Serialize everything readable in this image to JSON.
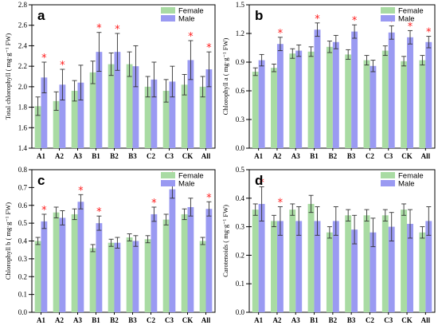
{
  "colors": {
    "female": "#a9dba3",
    "male": "#9a9af2",
    "star": "#ff1a1a"
  },
  "chart_data": [
    {
      "id": "a",
      "type": "bar",
      "panel_letter": "a",
      "ylabel": "Total chlorophyll ( mg·g⁻¹ FW)",
      "ylim": [
        1.4,
        2.8
      ],
      "yticks": [
        "1.4",
        "1.6",
        "1.8",
        "2.0",
        "2.2",
        "2.4",
        "2.6",
        "2.8"
      ],
      "categories": [
        "A1",
        "A2",
        "A3",
        "B1",
        "B2",
        "B3",
        "C2",
        "C3",
        "CK",
        "All"
      ],
      "legend": {
        "position": "top-right"
      },
      "series": [
        {
          "name": "Female",
          "values": [
            1.81,
            1.86,
            1.96,
            2.14,
            2.22,
            2.22,
            2.0,
            1.96,
            2.02,
            2.0
          ],
          "errors": [
            0.09,
            0.09,
            0.1,
            0.11,
            0.11,
            0.12,
            0.1,
            0.11,
            0.1,
            0.1
          ]
        },
        {
          "name": "Male",
          "values": [
            2.09,
            2.02,
            2.04,
            2.34,
            2.34,
            2.2,
            2.07,
            2.05,
            2.26,
            2.17
          ],
          "errors": [
            0.15,
            0.15,
            0.17,
            0.19,
            0.18,
            0.2,
            0.17,
            0.15,
            0.19,
            0.17
          ]
        }
      ],
      "significant": [
        true,
        true,
        false,
        true,
        true,
        false,
        false,
        false,
        true,
        true
      ]
    },
    {
      "id": "b",
      "type": "bar",
      "panel_letter": "b",
      "ylabel": "Chlorophyll a ( mg·g⁻¹ FW)",
      "ylim": [
        0.0,
        1.5
      ],
      "yticks": [
        "0.0",
        "0.3",
        "0.6",
        "0.9",
        "1.2",
        "1.5"
      ],
      "categories": [
        "A1",
        "A2",
        "A3",
        "B1",
        "B2",
        "B3",
        "C2",
        "C3",
        "CK",
        "All"
      ],
      "legend": {
        "position": "top-right"
      },
      "series": [
        {
          "name": "Female",
          "values": [
            0.8,
            0.84,
            0.99,
            1.01,
            1.06,
            0.98,
            0.92,
            1.02,
            0.91,
            0.92
          ],
          "errors": [
            0.04,
            0.04,
            0.05,
            0.05,
            0.06,
            0.05,
            0.05,
            0.05,
            0.05,
            0.05
          ]
        },
        {
          "name": "Male",
          "values": [
            0.92,
            1.09,
            1.02,
            1.24,
            1.11,
            1.22,
            0.86,
            1.21,
            1.16,
            1.11
          ],
          "errors": [
            0.06,
            0.07,
            0.06,
            0.07,
            0.07,
            0.07,
            0.06,
            0.07,
            0.07,
            0.06
          ]
        }
      ],
      "significant": [
        false,
        true,
        false,
        true,
        false,
        true,
        false,
        true,
        true,
        true
      ]
    },
    {
      "id": "c",
      "type": "bar",
      "panel_letter": "c",
      "ylabel": "Chlorophyll b ( mg·g⁻¹ FW)",
      "ylim": [
        0.0,
        0.8
      ],
      "yticks": [
        "0.0",
        "0.1",
        "0.2",
        "0.3",
        "0.4",
        "0.5",
        "0.6",
        "0.7",
        "0.8"
      ],
      "categories": [
        "A1",
        "A2",
        "A3",
        "B1",
        "B2",
        "B3",
        "C2",
        "C3",
        "CK",
        "All"
      ],
      "legend": {
        "position": "top-right"
      },
      "series": [
        {
          "name": "Female",
          "values": [
            0.4,
            0.56,
            0.55,
            0.36,
            0.39,
            0.42,
            0.41,
            0.52,
            0.55,
            0.4
          ],
          "errors": [
            0.02,
            0.03,
            0.03,
            0.02,
            0.02,
            0.02,
            0.02,
            0.03,
            0.03,
            0.02
          ]
        },
        {
          "name": "Male",
          "values": [
            0.51,
            0.53,
            0.62,
            0.5,
            0.39,
            0.4,
            0.55,
            0.69,
            0.59,
            0.58
          ],
          "errors": [
            0.04,
            0.04,
            0.04,
            0.04,
            0.03,
            0.03,
            0.04,
            0.05,
            0.05,
            0.04
          ]
        }
      ],
      "significant": [
        true,
        false,
        true,
        true,
        false,
        false,
        true,
        true,
        false,
        true
      ]
    },
    {
      "id": "d",
      "type": "bar",
      "panel_letter": "d",
      "ylabel": "Carotenoids ( mg·g⁻¹ FW)",
      "ylim": [
        0.0,
        0.5
      ],
      "yticks": [
        "0.0",
        "0.1",
        "0.2",
        "0.3",
        "0.4",
        "0.5"
      ],
      "categories": [
        "A1",
        "A2",
        "A3",
        "B1",
        "B2",
        "B3",
        "C2",
        "C3",
        "CK",
        "All"
      ],
      "legend": {
        "position": "top-right"
      },
      "series": [
        {
          "name": "Female",
          "values": [
            0.36,
            0.32,
            0.36,
            0.38,
            0.28,
            0.34,
            0.34,
            0.34,
            0.36,
            0.28
          ],
          "errors": [
            0.02,
            0.02,
            0.02,
            0.03,
            0.02,
            0.02,
            0.02,
            0.02,
            0.02,
            0.02
          ]
        },
        {
          "name": "Male",
          "values": [
            0.38,
            0.32,
            0.32,
            0.32,
            0.32,
            0.29,
            0.28,
            0.3,
            0.31,
            0.32
          ],
          "errors": [
            0.06,
            0.05,
            0.05,
            0.05,
            0.05,
            0.05,
            0.05,
            0.05,
            0.05,
            0.05
          ]
        }
      ],
      "significant": [
        true,
        true,
        false,
        false,
        false,
        false,
        false,
        false,
        false,
        false
      ]
    }
  ]
}
